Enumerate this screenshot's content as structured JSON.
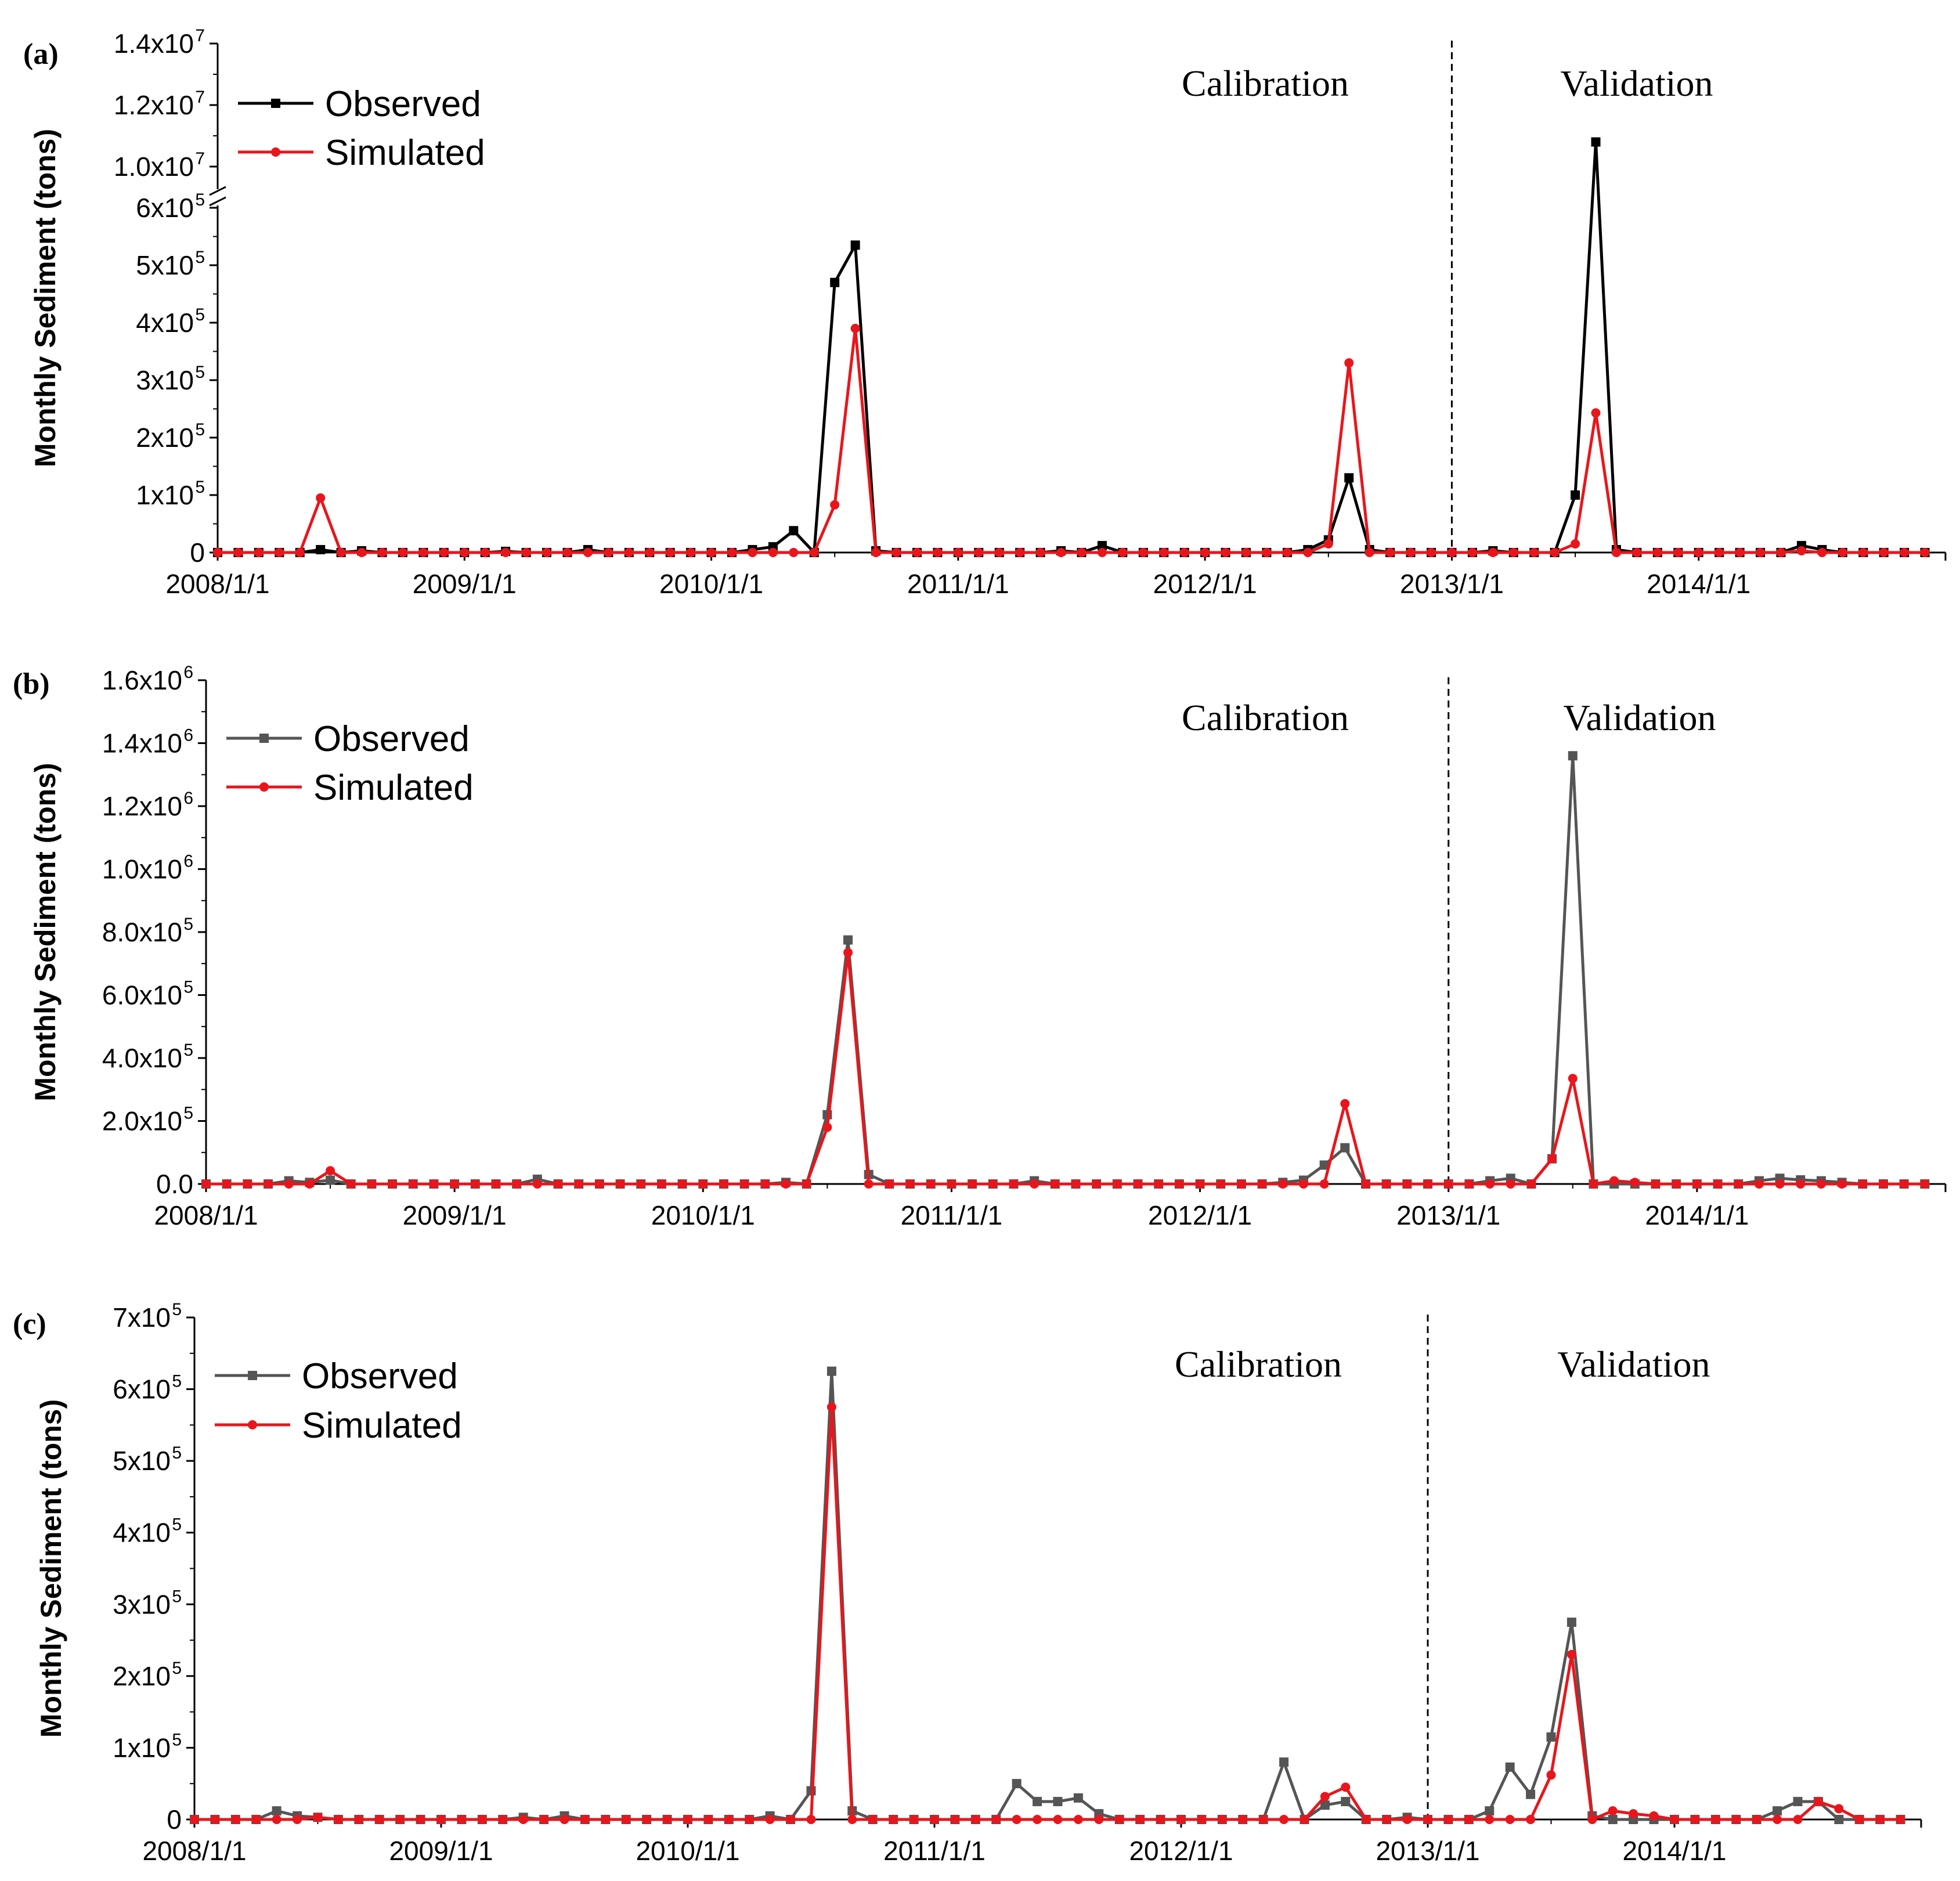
{
  "chart_data": [
    {
      "type": "line",
      "panel_label": "(a)",
      "ylabel": "Monthly Sediment (tons)",
      "x_ticks": [
        "2008/1/1",
        "2009/1/1",
        "2010/1/1",
        "2011/1/1",
        "2012/1/1",
        "2013/1/1",
        "2014/1/1"
      ],
      "y_ticks_lower": [
        {
          "m": "0",
          "e": ""
        },
        {
          "m": "1x10",
          "e": "5"
        },
        {
          "m": "2x10",
          "e": "5"
        },
        {
          "m": "3x10",
          "e": "5"
        },
        {
          "m": "4x10",
          "e": "5"
        },
        {
          "m": "5x10",
          "e": "5"
        },
        {
          "m": "6x10",
          "e": "5"
        }
      ],
      "y_ticks_upper": [
        {
          "m": "1.0x10",
          "e": "7"
        },
        {
          "m": "1.2x10",
          "e": "7"
        },
        {
          "m": "1.4x10",
          "e": "7"
        }
      ],
      "ylim_lower": [
        0,
        600000
      ],
      "ylim_upper": [
        9000000,
        14000000
      ],
      "axis_break": true,
      "calibration_label": "Calibration",
      "validation_label": "Validation",
      "split_month": 60,
      "legend": {
        "observed": "Observed",
        "simulated": "Simulated"
      },
      "colors": {
        "observed": "#000000",
        "simulated": "#e8161c"
      },
      "marker_observed": "square",
      "series": [
        {
          "name": "Observed",
          "values": [
            0,
            0,
            0,
            0,
            0,
            5000,
            0,
            3000,
            0,
            0,
            0,
            0,
            0,
            0,
            2000,
            0,
            0,
            0,
            5000,
            0,
            0,
            0,
            0,
            0,
            0,
            0,
            5000,
            10000,
            38000,
            0,
            470000,
            535000,
            3000,
            0,
            0,
            0,
            0,
            0,
            0,
            0,
            0,
            3000,
            0,
            12000,
            0,
            0,
            0,
            0,
            0,
            0,
            0,
            0,
            0,
            5000,
            22000,
            130000,
            5000,
            0,
            0,
            0,
            0,
            0,
            3000,
            0,
            0,
            0,
            100000,
            10800000,
            5000,
            0,
            0,
            0,
            0,
            0,
            0,
            0,
            0,
            12000,
            5000,
            0,
            0,
            0,
            0,
            0
          ]
        },
        {
          "name": "Simulated",
          "values": [
            0,
            0,
            0,
            0,
            0,
            95000,
            0,
            0,
            0,
            0,
            0,
            0,
            0,
            0,
            0,
            0,
            0,
            0,
            0,
            0,
            0,
            0,
            0,
            0,
            0,
            0,
            0,
            0,
            0,
            0,
            83000,
            390000,
            0,
            0,
            0,
            0,
            0,
            0,
            0,
            0,
            0,
            0,
            0,
            0,
            0,
            0,
            0,
            0,
            0,
            0,
            0,
            0,
            0,
            0,
            15000,
            330000,
            0,
            0,
            0,
            0,
            0,
            0,
            0,
            0,
            0,
            0,
            15000,
            243000,
            0,
            0,
            0,
            0,
            0,
            0,
            0,
            0,
            0,
            3000,
            0,
            0,
            0,
            0,
            0,
            0
          ]
        }
      ]
    },
    {
      "type": "line",
      "panel_label": "(b)",
      "ylabel": "Monthly Sediment (tons)",
      "x_ticks": [
        "2008/1/1",
        "2009/1/1",
        "2010/1/1",
        "2011/1/1",
        "2012/1/1",
        "2013/1/1",
        "2014/1/1"
      ],
      "y_ticks": [
        {
          "m": "0.0",
          "e": ""
        },
        {
          "m": "2.0x10",
          "e": "5"
        },
        {
          "m": "4.0x10",
          "e": "5"
        },
        {
          "m": "6.0x10",
          "e": "5"
        },
        {
          "m": "8.0x10",
          "e": "5"
        },
        {
          "m": "1.0x10",
          "e": "6"
        },
        {
          "m": "1.2x10",
          "e": "6"
        },
        {
          "m": "1.4x10",
          "e": "6"
        },
        {
          "m": "1.6x10",
          "e": "6"
        }
      ],
      "ylim": [
        0,
        1600000
      ],
      "calibration_label": "Calibration",
      "validation_label": "Validation",
      "split_month": 60,
      "legend": {
        "observed": "Observed",
        "simulated": "Simulated"
      },
      "colors": {
        "observed": "#555555",
        "simulated": "#e8161c"
      },
      "marker_observed": "square",
      "series": [
        {
          "name": "Observed",
          "values": [
            0,
            0,
            0,
            0,
            10000,
            5000,
            12000,
            0,
            0,
            0,
            0,
            0,
            0,
            0,
            0,
            0,
            15000,
            0,
            0,
            0,
            0,
            0,
            0,
            0,
            0,
            0,
            0,
            0,
            5000,
            0,
            220000,
            775000,
            30000,
            0,
            0,
            0,
            0,
            0,
            0,
            0,
            10000,
            0,
            0,
            0,
            0,
            0,
            0,
            0,
            0,
            0,
            0,
            0,
            5000,
            12000,
            60000,
            115000,
            0,
            0,
            0,
            0,
            0,
            0,
            10000,
            18000,
            0,
            80000,
            1360000,
            0,
            0,
            0,
            0,
            0,
            0,
            0,
            0,
            10000,
            18000,
            13000,
            10000,
            5000,
            0,
            0,
            0,
            0
          ]
        },
        {
          "name": "Simulated",
          "values": [
            0,
            0,
            0,
            0,
            0,
            0,
            42000,
            0,
            0,
            0,
            0,
            0,
            0,
            0,
            0,
            0,
            0,
            0,
            0,
            0,
            0,
            0,
            0,
            0,
            0,
            0,
            0,
            0,
            0,
            0,
            180000,
            735000,
            0,
            0,
            0,
            0,
            0,
            0,
            0,
            0,
            0,
            0,
            0,
            0,
            0,
            0,
            0,
            0,
            0,
            0,
            0,
            0,
            0,
            0,
            0,
            255000,
            0,
            0,
            0,
            0,
            0,
            0,
            0,
            0,
            0,
            80000,
            335000,
            0,
            10000,
            5000,
            0,
            0,
            0,
            0,
            0,
            0,
            0,
            0,
            0,
            0,
            0,
            0,
            0,
            0
          ]
        }
      ]
    },
    {
      "type": "line",
      "panel_label": "(c)",
      "ylabel": "Monthly Sediment (tons)",
      "x_ticks": [
        "2008/1/1",
        "2009/1/1",
        "2010/1/1",
        "2011/1/1",
        "2012/1/1",
        "2013/1/1",
        "2014/1/1"
      ],
      "y_ticks": [
        {
          "m": "0",
          "e": ""
        },
        {
          "m": "1x10",
          "e": "5"
        },
        {
          "m": "2x10",
          "e": "5"
        },
        {
          "m": "3x10",
          "e": "5"
        },
        {
          "m": "4x10",
          "e": "5"
        },
        {
          "m": "5x10",
          "e": "5"
        },
        {
          "m": "6x10",
          "e": "5"
        },
        {
          "m": "7x10",
          "e": "5"
        }
      ],
      "ylim": [
        0,
        700000
      ],
      "calibration_label": "Calibration",
      "validation_label": "Validation",
      "split_month": 60,
      "legend": {
        "observed": "Observed",
        "simulated": "Simulated"
      },
      "colors": {
        "observed": "#555555",
        "simulated": "#e8161c"
      },
      "marker_observed": "square",
      "series": [
        {
          "name": "Observed",
          "values": [
            0,
            0,
            0,
            0,
            12000,
            5000,
            3000,
            0,
            0,
            0,
            0,
            0,
            0,
            0,
            0,
            0,
            3000,
            0,
            5000,
            0,
            0,
            0,
            0,
            0,
            0,
            0,
            0,
            0,
            5000,
            0,
            40000,
            625000,
            12000,
            0,
            0,
            0,
            0,
            0,
            0,
            0,
            50000,
            25000,
            25000,
            30000,
            8000,
            0,
            0,
            0,
            0,
            0,
            0,
            0,
            0,
            80000,
            0,
            20000,
            25000,
            0,
            0,
            3000,
            0,
            0,
            0,
            12000,
            73000,
            35000,
            115000,
            275000,
            5000,
            0,
            0,
            0,
            0,
            0,
            0,
            0,
            0,
            12000,
            25000,
            25000,
            0,
            0,
            0,
            0
          ]
        },
        {
          "name": "Simulated",
          "values": [
            0,
            0,
            0,
            0,
            0,
            0,
            3000,
            0,
            0,
            0,
            0,
            0,
            0,
            0,
            0,
            0,
            0,
            0,
            0,
            0,
            0,
            0,
            0,
            0,
            0,
            0,
            0,
            0,
            0,
            0,
            0,
            575000,
            0,
            0,
            0,
            0,
            0,
            0,
            0,
            0,
            0,
            0,
            0,
            0,
            0,
            0,
            0,
            0,
            0,
            0,
            0,
            0,
            0,
            0,
            0,
            32000,
            45000,
            0,
            0,
            0,
            0,
            0,
            0,
            0,
            0,
            0,
            62000,
            230000,
            0,
            12000,
            8000,
            5000,
            0,
            0,
            0,
            0,
            0,
            0,
            0,
            25000,
            15000,
            0,
            0,
            0
          ]
        }
      ]
    }
  ]
}
